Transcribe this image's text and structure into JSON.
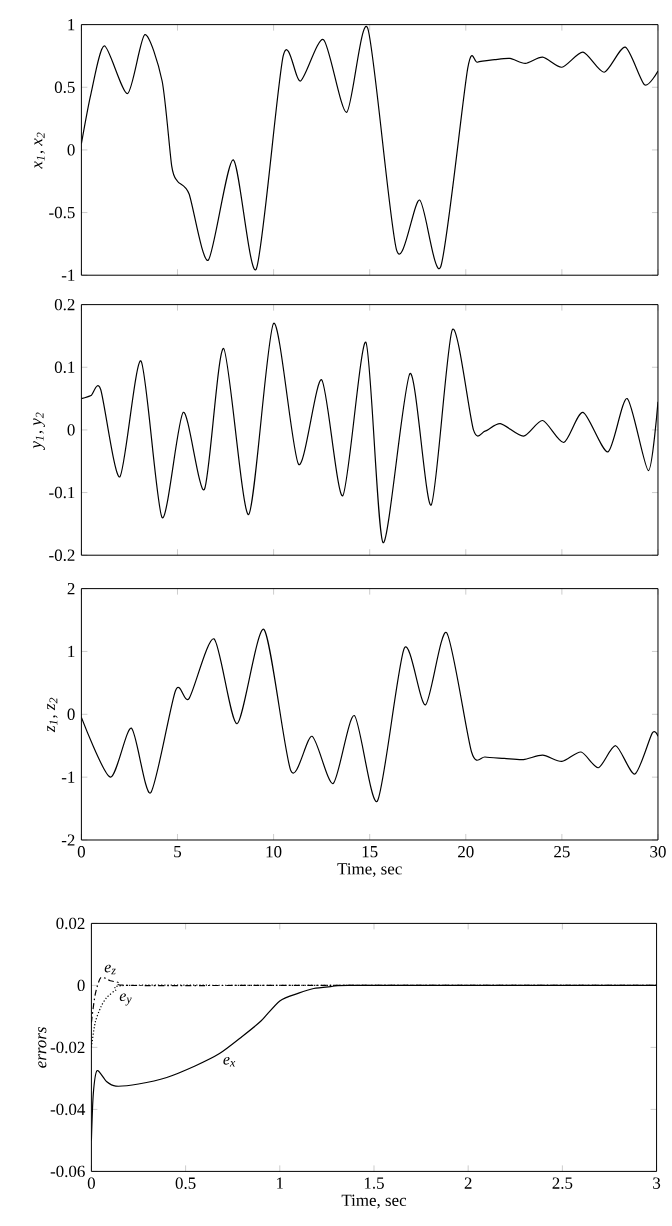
{
  "chart_data": [
    {
      "type": "line",
      "ylabel": "x$_{1}$, x$_{2}$",
      "xlim": [
        0,
        30
      ],
      "ylim": [
        -1,
        1
      ],
      "xticks": [
        0,
        5,
        10,
        15,
        20,
        25,
        30
      ],
      "yticks": [
        -1,
        -0.5,
        0,
        0.5,
        1
      ],
      "tick_labels": "y",
      "line_style": "solid",
      "series": [
        {
          "color": "#000000",
          "x": [
            0,
            0.5,
            1.2,
            2.4,
            3.3,
            4.2,
            4.7,
            5.0,
            5.6,
            6.6,
            7.9,
            9.1,
            10.5,
            11.4,
            12.6,
            13.8,
            14.9,
            16.4,
            17.6,
            18.7,
            20.1,
            20.6,
            21.5,
            22.3,
            23.1,
            24,
            25,
            26.1,
            27.2,
            28.3,
            29.3,
            30
          ],
          "values": [
            0.05,
            0.45,
            0.83,
            0.45,
            0.92,
            0.55,
            -0.13,
            -0.25,
            -0.35,
            -0.88,
            -0.08,
            -0.95,
            0.75,
            0.55,
            0.88,
            0.3,
            0.97,
            -0.8,
            -0.4,
            -0.93,
            0.65,
            0.7,
            0.72,
            0.73,
            0.69,
            0.74,
            0.66,
            0.78,
            0.62,
            0.82,
            0.52,
            0.63
          ]
        }
      ]
    },
    {
      "type": "line",
      "ylabel": "y$_{1}$, y$_{2}$",
      "xlim": [
        0,
        30
      ],
      "ylim": [
        -0.2,
        0.2
      ],
      "xticks": [
        0,
        5,
        10,
        15,
        20,
        25,
        30
      ],
      "yticks": [
        -0.2,
        -0.1,
        0,
        0.1,
        0.2
      ],
      "tick_labels": "y",
      "line_style": "solid",
      "series": [
        {
          "color": "#000000",
          "x": [
            0,
            0.5,
            1,
            2,
            3.1,
            4.2,
            5.3,
            6.4,
            7.4,
            8.7,
            10,
            11.3,
            12.5,
            13.6,
            14.8,
            15.7,
            17.1,
            18.2,
            19.3,
            20.4,
            21,
            21.8,
            23,
            24,
            25.1,
            26.1,
            27.4,
            28.4,
            29.5,
            30
          ],
          "values": [
            0.05,
            0.055,
            0.065,
            -0.075,
            0.11,
            -0.14,
            0.028,
            -0.095,
            0.13,
            -0.135,
            0.17,
            -0.055,
            0.08,
            -0.105,
            0.14,
            -0.18,
            0.09,
            -0.12,
            0.16,
            0.0,
            -0.002,
            0.01,
            -0.01,
            0.015,
            -0.02,
            0.028,
            -0.035,
            0.05,
            -0.065,
            0.045
          ]
        }
      ]
    },
    {
      "type": "line",
      "xlabel": "Time,   sec",
      "ylabel": "z$_{1}$, z$_{2}$",
      "xlim": [
        0,
        30
      ],
      "ylim": [
        -2,
        2
      ],
      "xticks": [
        0,
        5,
        10,
        15,
        20,
        25,
        30
      ],
      "yticks": [
        -2,
        -1,
        0,
        1,
        2
      ],
      "line_style": "solid",
      "series": [
        {
          "color": "#000000",
          "x": [
            0,
            1.5,
            2.6,
            3.6,
            4.9,
            5.6,
            6.9,
            8.1,
            9.5,
            10.9,
            12,
            13.1,
            14.2,
            15.4,
            16.8,
            17.9,
            19,
            20.3,
            21,
            22,
            23,
            24,
            25,
            26,
            26.9,
            27.8,
            28.8,
            29.7,
            30
          ],
          "values": [
            -0.05,
            -1.0,
            -0.22,
            -1.25,
            0.38,
            0.25,
            1.2,
            -0.15,
            1.35,
            -0.9,
            -0.35,
            -1.1,
            -0.02,
            -1.38,
            1.05,
            0.15,
            1.3,
            -0.6,
            -0.68,
            -0.7,
            -0.72,
            -0.65,
            -0.75,
            -0.6,
            -0.85,
            -0.5,
            -0.95,
            -0.3,
            -0.35
          ]
        }
      ]
    },
    {
      "type": "line",
      "xlabel": "Time,  sec",
      "ylabel": "errors",
      "xlim": [
        0,
        3
      ],
      "ylim": [
        -0.06,
        0.02
      ],
      "xticks": [
        0,
        0.5,
        1,
        1.5,
        2,
        2.5,
        3
      ],
      "yticks": [
        -0.06,
        -0.04,
        -0.02,
        0,
        0.02
      ],
      "series": [
        {
          "color": "#000000",
          "line_style": "solid",
          "x": [
            0,
            0.01,
            0.03,
            0.08,
            0.13,
            0.25,
            0.4,
            0.55,
            0.68,
            0.8,
            0.9,
            1.0,
            1.1,
            1.18,
            1.27,
            1.36,
            2,
            3
          ],
          "values": [
            -0.05,
            -0.035,
            -0.0275,
            -0.031,
            -0.0325,
            -0.0318,
            -0.0297,
            -0.026,
            -0.022,
            -0.0165,
            -0.0115,
            -0.005,
            -0.0025,
            -0.001,
            -0.0004,
            0,
            0,
            0
          ]
        },
        {
          "color": "#000000",
          "line_style": "dotted",
          "x": [
            0,
            0.02,
            0.05,
            0.08,
            0.13,
            0.19,
            1,
            2,
            3
          ],
          "values": [
            -0.02,
            -0.012,
            -0.007,
            -0.004,
            -0.0015,
            0,
            0,
            0,
            0
          ]
        },
        {
          "color": "#000000",
          "line_style": "dashed",
          "x": [
            0,
            0.02,
            0.05,
            0.1,
            0.14,
            0.2,
            1,
            2,
            3
          ],
          "values": [
            -0.012,
            -0.003,
            0.0025,
            0.0015,
            0.001,
            0,
            0,
            0,
            0
          ]
        }
      ],
      "annotations": [
        {
          "text": "e$_{z}$",
          "x": 0.05,
          "y": 0.0025
        },
        {
          "text": "e$_{y}$",
          "x": 0.13,
          "y": -0.0015
        },
        {
          "text": "e$_{x}$",
          "x": 0.68,
          "y": -0.022
        }
      ]
    }
  ]
}
